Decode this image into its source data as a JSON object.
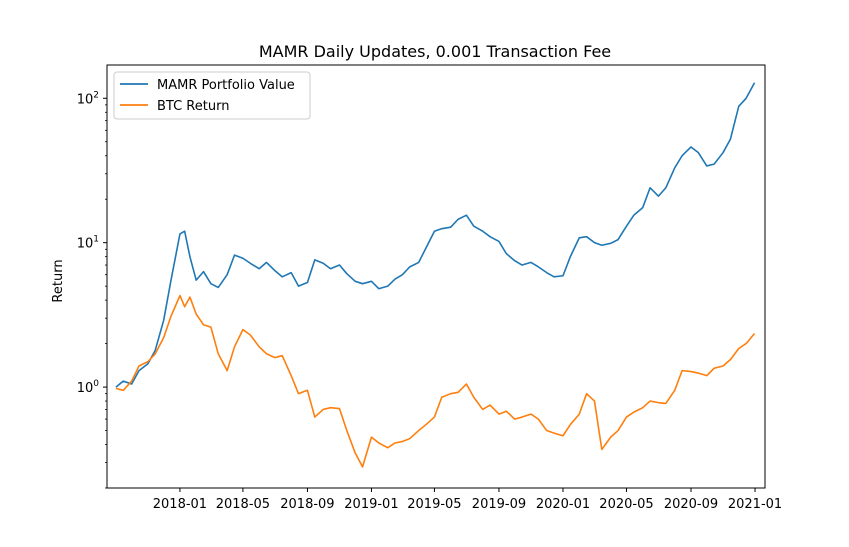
{
  "chart_data": {
    "type": "line",
    "title": "MAMR Daily Updates, 0.001 Transaction Fee",
    "xlabel": "",
    "ylabel": "Return",
    "yscale": "log",
    "ylim": [
      0.2,
      170
    ],
    "xlim": [
      "2017-08-15",
      "2021-01-20"
    ],
    "grid": false,
    "legend_position": "top-left",
    "x_ticks": [
      "2018-01",
      "2018-05",
      "2018-09",
      "2019-01",
      "2019-05",
      "2019-09",
      "2020-01",
      "2020-05",
      "2020-09",
      "2021-01"
    ],
    "y_ticks": [
      {
        "value": 1,
        "base": "10",
        "exp": "0"
      },
      {
        "value": 10,
        "base": "10",
        "exp": "1"
      },
      {
        "value": 100,
        "base": "10",
        "exp": "2"
      }
    ],
    "series": [
      {
        "name": "MAMR Portfolio Value",
        "color": "#1f77b4",
        "points": [
          [
            "2017-09-01",
            1.0
          ],
          [
            "2017-09-15",
            1.1
          ],
          [
            "2017-10-01",
            1.05
          ],
          [
            "2017-10-15",
            1.3
          ],
          [
            "2017-11-01",
            1.45
          ],
          [
            "2017-11-15",
            1.8
          ],
          [
            "2017-12-01",
            2.9
          ],
          [
            "2017-12-15",
            5.5
          ],
          [
            "2018-01-01",
            11.5
          ],
          [
            "2018-01-10",
            12.0
          ],
          [
            "2018-01-20",
            8.0
          ],
          [
            "2018-02-01",
            5.5
          ],
          [
            "2018-02-15",
            6.3
          ],
          [
            "2018-03-01",
            5.2
          ],
          [
            "2018-03-15",
            4.9
          ],
          [
            "2018-04-01",
            6.0
          ],
          [
            "2018-04-15",
            8.2
          ],
          [
            "2018-05-01",
            7.8
          ],
          [
            "2018-05-15",
            7.2
          ],
          [
            "2018-06-01",
            6.6
          ],
          [
            "2018-06-15",
            7.3
          ],
          [
            "2018-07-01",
            6.4
          ],
          [
            "2018-07-15",
            5.8
          ],
          [
            "2018-08-01",
            6.2
          ],
          [
            "2018-08-15",
            5.0
          ],
          [
            "2018-09-01",
            5.3
          ],
          [
            "2018-09-15",
            7.6
          ],
          [
            "2018-10-01",
            7.2
          ],
          [
            "2018-10-15",
            6.6
          ],
          [
            "2018-11-01",
            7.0
          ],
          [
            "2018-11-15",
            6.1
          ],
          [
            "2018-12-01",
            5.4
          ],
          [
            "2018-12-15",
            5.2
          ],
          [
            "2019-01-01",
            5.4
          ],
          [
            "2019-01-15",
            4.8
          ],
          [
            "2019-02-01",
            5.0
          ],
          [
            "2019-02-15",
            5.6
          ],
          [
            "2019-03-01",
            6.0
          ],
          [
            "2019-03-15",
            6.8
          ],
          [
            "2019-04-01",
            7.3
          ],
          [
            "2019-04-15",
            9.2
          ],
          [
            "2019-05-01",
            12.0
          ],
          [
            "2019-05-15",
            12.5
          ],
          [
            "2019-06-01",
            12.8
          ],
          [
            "2019-06-15",
            14.5
          ],
          [
            "2019-07-01",
            15.5
          ],
          [
            "2019-07-15",
            13.0
          ],
          [
            "2019-08-01",
            12.0
          ],
          [
            "2019-08-15",
            11.0
          ],
          [
            "2019-09-01",
            10.2
          ],
          [
            "2019-09-15",
            8.4
          ],
          [
            "2019-10-01",
            7.5
          ],
          [
            "2019-10-15",
            7.0
          ],
          [
            "2019-11-01",
            7.3
          ],
          [
            "2019-11-15",
            6.8
          ],
          [
            "2019-12-01",
            6.2
          ],
          [
            "2019-12-15",
            5.8
          ],
          [
            "2020-01-01",
            5.9
          ],
          [
            "2020-01-15",
            8.0
          ],
          [
            "2020-02-01",
            10.8
          ],
          [
            "2020-02-15",
            11.0
          ],
          [
            "2020-03-01",
            10.0
          ],
          [
            "2020-03-15",
            9.6
          ],
          [
            "2020-04-01",
            9.9
          ],
          [
            "2020-04-15",
            10.5
          ],
          [
            "2020-05-01",
            13.0
          ],
          [
            "2020-05-15",
            15.5
          ],
          [
            "2020-06-01",
            17.5
          ],
          [
            "2020-06-15",
            24.0
          ],
          [
            "2020-07-01",
            21.0
          ],
          [
            "2020-07-15",
            24.0
          ],
          [
            "2020-08-01",
            33.0
          ],
          [
            "2020-08-15",
            40.0
          ],
          [
            "2020-09-01",
            46.0
          ],
          [
            "2020-09-15",
            42.0
          ],
          [
            "2020-10-01",
            34.0
          ],
          [
            "2020-10-15",
            35.0
          ],
          [
            "2020-11-01",
            42.0
          ],
          [
            "2020-11-15",
            52.0
          ],
          [
            "2020-12-01",
            88.0
          ],
          [
            "2020-12-15",
            100.0
          ],
          [
            "2020-12-31",
            128.0
          ]
        ]
      },
      {
        "name": "BTC Return",
        "color": "#ff7f0e",
        "points": [
          [
            "2017-09-01",
            0.98
          ],
          [
            "2017-09-15",
            0.95
          ],
          [
            "2017-10-01",
            1.1
          ],
          [
            "2017-10-15",
            1.4
          ],
          [
            "2017-11-01",
            1.5
          ],
          [
            "2017-11-15",
            1.7
          ],
          [
            "2017-12-01",
            2.2
          ],
          [
            "2017-12-15",
            3.1
          ],
          [
            "2018-01-01",
            4.3
          ],
          [
            "2018-01-10",
            3.6
          ],
          [
            "2018-01-20",
            4.2
          ],
          [
            "2018-02-01",
            3.2
          ],
          [
            "2018-02-15",
            2.7
          ],
          [
            "2018-03-01",
            2.6
          ],
          [
            "2018-03-15",
            1.7
          ],
          [
            "2018-04-01",
            1.3
          ],
          [
            "2018-04-15",
            1.9
          ],
          [
            "2018-05-01",
            2.5
          ],
          [
            "2018-05-15",
            2.3
          ],
          [
            "2018-06-01",
            1.9
          ],
          [
            "2018-06-15",
            1.7
          ],
          [
            "2018-07-01",
            1.6
          ],
          [
            "2018-07-15",
            1.65
          ],
          [
            "2018-08-01",
            1.2
          ],
          [
            "2018-08-15",
            0.9
          ],
          [
            "2018-09-01",
            0.95
          ],
          [
            "2018-09-15",
            0.62
          ],
          [
            "2018-10-01",
            0.7
          ],
          [
            "2018-10-15",
            0.72
          ],
          [
            "2018-11-01",
            0.71
          ],
          [
            "2018-11-15",
            0.5
          ],
          [
            "2018-12-01",
            0.35
          ],
          [
            "2018-12-15",
            0.28
          ],
          [
            "2019-01-01",
            0.45
          ],
          [
            "2019-01-15",
            0.41
          ],
          [
            "2019-02-01",
            0.38
          ],
          [
            "2019-02-15",
            0.41
          ],
          [
            "2019-03-01",
            0.42
          ],
          [
            "2019-03-15",
            0.44
          ],
          [
            "2019-04-01",
            0.5
          ],
          [
            "2019-04-15",
            0.55
          ],
          [
            "2019-05-01",
            0.62
          ],
          [
            "2019-05-15",
            0.85
          ],
          [
            "2019-06-01",
            0.9
          ],
          [
            "2019-06-15",
            0.92
          ],
          [
            "2019-07-01",
            1.05
          ],
          [
            "2019-07-15",
            0.85
          ],
          [
            "2019-08-01",
            0.7
          ],
          [
            "2019-08-15",
            0.75
          ],
          [
            "2019-09-01",
            0.65
          ],
          [
            "2019-09-15",
            0.68
          ],
          [
            "2019-10-01",
            0.6
          ],
          [
            "2019-10-15",
            0.62
          ],
          [
            "2019-11-01",
            0.65
          ],
          [
            "2019-11-15",
            0.6
          ],
          [
            "2019-12-01",
            0.5
          ],
          [
            "2019-12-15",
            0.48
          ],
          [
            "2020-01-01",
            0.46
          ],
          [
            "2020-01-15",
            0.55
          ],
          [
            "2020-02-01",
            0.65
          ],
          [
            "2020-02-15",
            0.9
          ],
          [
            "2020-03-01",
            0.8
          ],
          [
            "2020-03-15",
            0.37
          ],
          [
            "2020-04-01",
            0.45
          ],
          [
            "2020-04-15",
            0.5
          ],
          [
            "2020-05-01",
            0.62
          ],
          [
            "2020-05-15",
            0.67
          ],
          [
            "2020-06-01",
            0.72
          ],
          [
            "2020-06-15",
            0.8
          ],
          [
            "2020-07-01",
            0.78
          ],
          [
            "2020-07-15",
            0.77
          ],
          [
            "2020-08-01",
            0.95
          ],
          [
            "2020-08-15",
            1.3
          ],
          [
            "2020-09-01",
            1.28
          ],
          [
            "2020-09-15",
            1.25
          ],
          [
            "2020-10-01",
            1.2
          ],
          [
            "2020-10-15",
            1.35
          ],
          [
            "2020-11-01",
            1.4
          ],
          [
            "2020-11-15",
            1.55
          ],
          [
            "2020-12-01",
            1.85
          ],
          [
            "2020-12-15",
            2.0
          ],
          [
            "2020-12-31",
            2.35
          ]
        ]
      }
    ]
  }
}
